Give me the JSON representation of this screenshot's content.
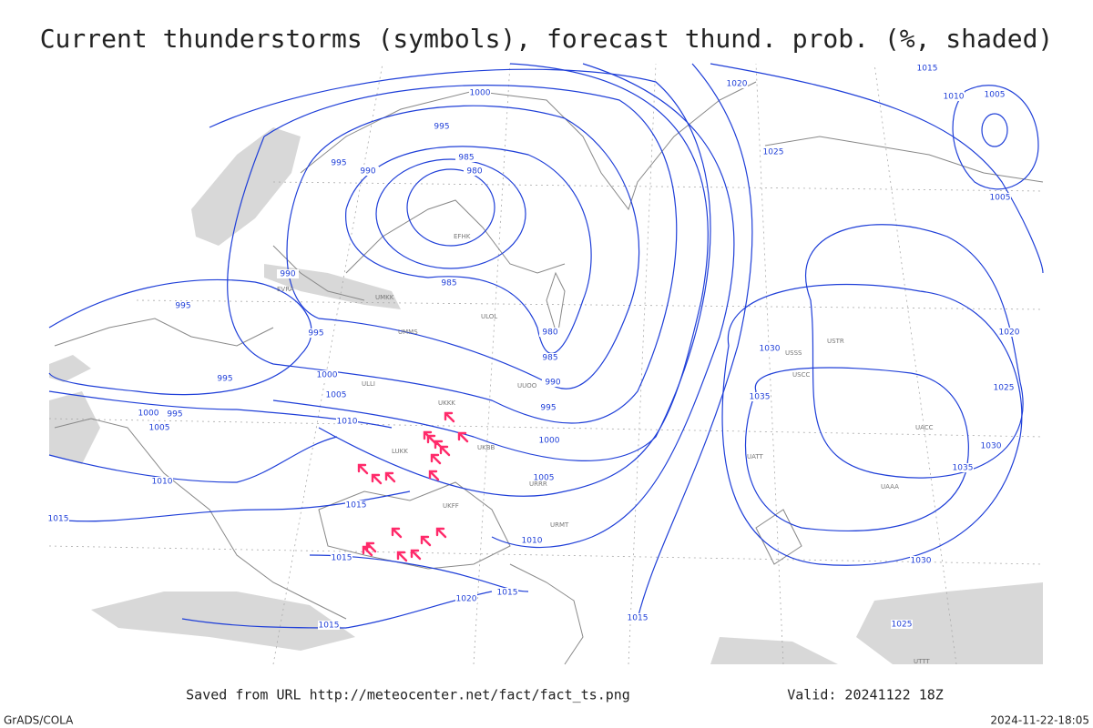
{
  "title": "Current thunderstorms (symbols), forecast thund. prob. (%, shaded)",
  "footer": {
    "source": "Saved from URL http://meteocenter.net/fact/fact_ts.png",
    "valid": "Valid: 20241122 18Z",
    "credit": "GrADS/COLA",
    "timestamp": "2024-11-22-18:05"
  },
  "isobar_labels": [
    "1000",
    "995",
    "995",
    "990",
    "985",
    "980",
    "1020",
    "1015",
    "1010",
    "1005",
    "1025",
    "1005",
    "990",
    "995",
    "995",
    "985",
    "995",
    "1000",
    "1005",
    "1000",
    "995",
    "1005",
    "1010",
    "980",
    "985",
    "990",
    "995",
    "1000",
    "1005",
    "1030",
    "1035",
    "1025",
    "1030",
    "1035",
    "1020",
    "1010",
    "1015",
    "1015",
    "1015",
    "1010",
    "1015",
    "1020",
    "1015",
    "1015",
    "1030",
    "1025"
  ],
  "stations": [
    "EFHK",
    "ULOL",
    "ULLI",
    "UMMS",
    "UKKK",
    "UKBB",
    "LUKK",
    "URRR",
    "UUOO",
    "USSS",
    "USCC",
    "UACC",
    "UATT",
    "USTR",
    "UMKK",
    "EVRA",
    "UKFF",
    "URMT",
    "UAAA",
    "UTTT"
  ]
}
